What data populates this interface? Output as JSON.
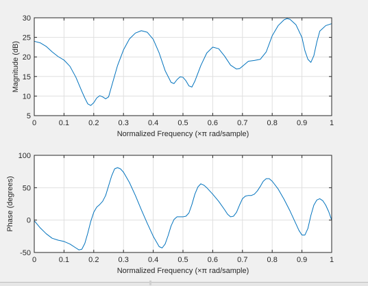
{
  "chart_data": [
    {
      "type": "line",
      "title": "",
      "xlabel": "Normalized Frequency  (×π rad/sample)",
      "ylabel": "Magnitude (dB)",
      "xlim": [
        0,
        1
      ],
      "ylim": [
        5,
        30
      ],
      "xticks": [
        0,
        0.1,
        0.2,
        0.3,
        0.4,
        0.5,
        0.6,
        0.7,
        0.8,
        0.9,
        1
      ],
      "xtick_labels": [
        "0",
        "0.1",
        "0.2",
        "0.3",
        "0.4",
        "0.5",
        "0.6",
        "0.7",
        "0.8",
        "0.9",
        "1"
      ],
      "yticks": [
        5,
        10,
        15,
        20,
        25,
        30
      ],
      "ytick_labels": [
        "5",
        "10",
        "15",
        "20",
        "25",
        "30"
      ],
      "grid": true,
      "line_color": "#0072bd",
      "series": [
        {
          "x": [
            0,
            0.02,
            0.04,
            0.06,
            0.08,
            0.1,
            0.12,
            0.14,
            0.16,
            0.17,
            0.18,
            0.19,
            0.2,
            0.21,
            0.22,
            0.23,
            0.24,
            0.25,
            0.26,
            0.28,
            0.3,
            0.32,
            0.34,
            0.36,
            0.38,
            0.4,
            0.42,
            0.44,
            0.46,
            0.47,
            0.48,
            0.49,
            0.5,
            0.51,
            0.52,
            0.53,
            0.54,
            0.56,
            0.58,
            0.6,
            0.62,
            0.64,
            0.66,
            0.68,
            0.69,
            0.7,
            0.72,
            0.74,
            0.76,
            0.78,
            0.8,
            0.82,
            0.84,
            0.85,
            0.86,
            0.88,
            0.9,
            0.91,
            0.92,
            0.93,
            0.94,
            0.95,
            0.96,
            0.98,
            1
          ],
          "y": [
            24,
            23.6,
            22.7,
            21.3,
            20.1,
            19.2,
            17.6,
            14.8,
            11.2,
            9.5,
            8.0,
            7.6,
            8.3,
            9.5,
            10.1,
            9.8,
            9.3,
            9.8,
            12.5,
            17.8,
            21.8,
            24.6,
            26.1,
            26.7,
            26.3,
            24.5,
            21,
            16.5,
            13.5,
            13.2,
            14.2,
            14.9,
            14.8,
            13.9,
            12.6,
            12.3,
            13.8,
            17.8,
            21,
            22.5,
            22.1,
            20.2,
            17.9,
            16.9,
            17,
            17.6,
            18.9,
            19.1,
            19.4,
            21.3,
            25.4,
            28.0,
            29.5,
            29.8,
            29.6,
            28.2,
            25.0,
            21.6,
            19.4,
            18.6,
            20.3,
            23.8,
            26.6,
            28.0,
            28.5
          ]
        }
      ]
    },
    {
      "type": "line",
      "title": "",
      "xlabel": "Normalized Frequency  (×π rad/sample)",
      "ylabel": "Phase (degrees)",
      "xlim": [
        0,
        1
      ],
      "ylim": [
        -50,
        100
      ],
      "xticks": [
        0,
        0.1,
        0.2,
        0.3,
        0.4,
        0.5,
        0.6,
        0.7,
        0.8,
        0.9,
        1
      ],
      "xtick_labels": [
        "0",
        "0.1",
        "0.2",
        "0.3",
        "0.4",
        "0.5",
        "0.6",
        "0.7",
        "0.8",
        "0.9",
        "1"
      ],
      "yticks": [
        -50,
        0,
        50,
        100
      ],
      "ytick_labels": [
        "-50",
        "0",
        "50",
        "100"
      ],
      "grid": true,
      "line_color": "#0072bd",
      "series": [
        {
          "x": [
            0,
            0.02,
            0.04,
            0.06,
            0.08,
            0.1,
            0.12,
            0.14,
            0.15,
            0.16,
            0.17,
            0.18,
            0.19,
            0.2,
            0.21,
            0.22,
            0.23,
            0.24,
            0.25,
            0.26,
            0.27,
            0.28,
            0.29,
            0.3,
            0.32,
            0.34,
            0.36,
            0.38,
            0.4,
            0.42,
            0.43,
            0.44,
            0.45,
            0.46,
            0.47,
            0.48,
            0.49,
            0.5,
            0.51,
            0.52,
            0.53,
            0.54,
            0.55,
            0.56,
            0.57,
            0.58,
            0.6,
            0.62,
            0.64,
            0.65,
            0.66,
            0.67,
            0.68,
            0.69,
            0.7,
            0.71,
            0.72,
            0.73,
            0.74,
            0.75,
            0.76,
            0.77,
            0.78,
            0.79,
            0.8,
            0.82,
            0.84,
            0.86,
            0.88,
            0.89,
            0.9,
            0.91,
            0.92,
            0.93,
            0.94,
            0.95,
            0.96,
            0.97,
            0.98,
            0.99,
            1
          ],
          "y": [
            -1,
            -12,
            -21,
            -28,
            -31,
            -33,
            -37,
            -43,
            -46,
            -45,
            -36,
            -20,
            -2,
            12,
            20,
            24,
            29,
            38,
            53,
            68,
            79,
            81,
            79,
            74,
            58,
            38,
            16,
            -5,
            -25,
            -41,
            -43,
            -37,
            -24,
            -9,
            1,
            5,
            5,
            5,
            6,
            11,
            24,
            40,
            51,
            56,
            54,
            50,
            40,
            29,
            16,
            9,
            5,
            6,
            12,
            23,
            33,
            37,
            38,
            38,
            40,
            45,
            52,
            60,
            64,
            64,
            60,
            48,
            32,
            14,
            -6,
            -16,
            -23,
            -23,
            -13,
            7,
            23,
            31,
            33,
            30,
            23,
            13,
            0
          ]
        }
      ]
    }
  ]
}
